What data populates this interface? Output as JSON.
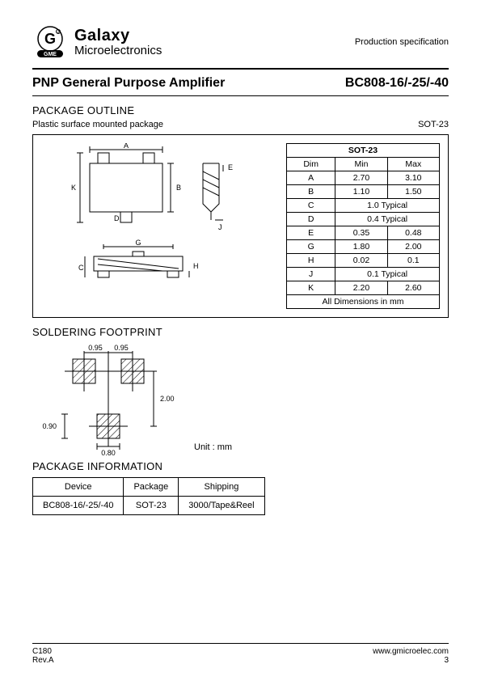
{
  "header": {
    "brand_top": "Galaxy",
    "brand_bottom": "Microelectronics",
    "logo_badge": "GME",
    "spec_label": "Production specification"
  },
  "title": {
    "left": "PNP General Purpose Amplifier",
    "right": "BC808-16/-25/-40"
  },
  "sections": {
    "package_outline": "PACKAGE OUTLINE",
    "soldering_footprint": "SOLDERING FOOTPRINT",
    "package_information": "PACKAGE    INFORMATION"
  },
  "outline": {
    "subtitle_left": "Plastic surface mounted package",
    "subtitle_right": "SOT-23",
    "dim_labels": {
      "A": "A",
      "B": "B",
      "C": "C",
      "D": "D",
      "E": "E",
      "G": "G",
      "H": "H",
      "J": "J",
      "K": "K"
    },
    "table": {
      "caption": "SOT-23",
      "head": {
        "dim": "Dim",
        "min": "Min",
        "max": "Max"
      },
      "rows": [
        {
          "dim": "A",
          "min": "2.70",
          "max": "3.10"
        },
        {
          "dim": "B",
          "min": "1.10",
          "max": "1.50"
        },
        {
          "dim": "C",
          "span": "1.0 Typical"
        },
        {
          "dim": "D",
          "span": "0.4 Typical"
        },
        {
          "dim": "E",
          "min": "0.35",
          "max": "0.48"
        },
        {
          "dim": "G",
          "min": "1.80",
          "max": "2.00"
        },
        {
          "dim": "H",
          "min": "0.02",
          "max": "0.1"
        },
        {
          "dim": "J",
          "span": "0.1 Typical"
        },
        {
          "dim": "K",
          "min": "2.20",
          "max": "2.60"
        }
      ],
      "footer": "All Dimensions in mm"
    }
  },
  "footprint": {
    "dims": {
      "gap1": "0.95",
      "gap2": "0.95",
      "height": "2.00",
      "padh": "0.90",
      "padw": "0.80"
    },
    "unit_label": "Unit : mm"
  },
  "package_info": {
    "head": {
      "device": "Device",
      "package": "Package",
      "shipping": "Shipping"
    },
    "row": {
      "device": "BC808-16/-25/-40",
      "package": "SOT-23",
      "shipping": "3000/Tape&Reel"
    }
  },
  "footer": {
    "left1": "C180",
    "left2": "Rev.A",
    "right1": "www.gmicroelec.com",
    "right2": "3"
  },
  "colors": {
    "hatch": "#888888",
    "line": "#000000"
  }
}
